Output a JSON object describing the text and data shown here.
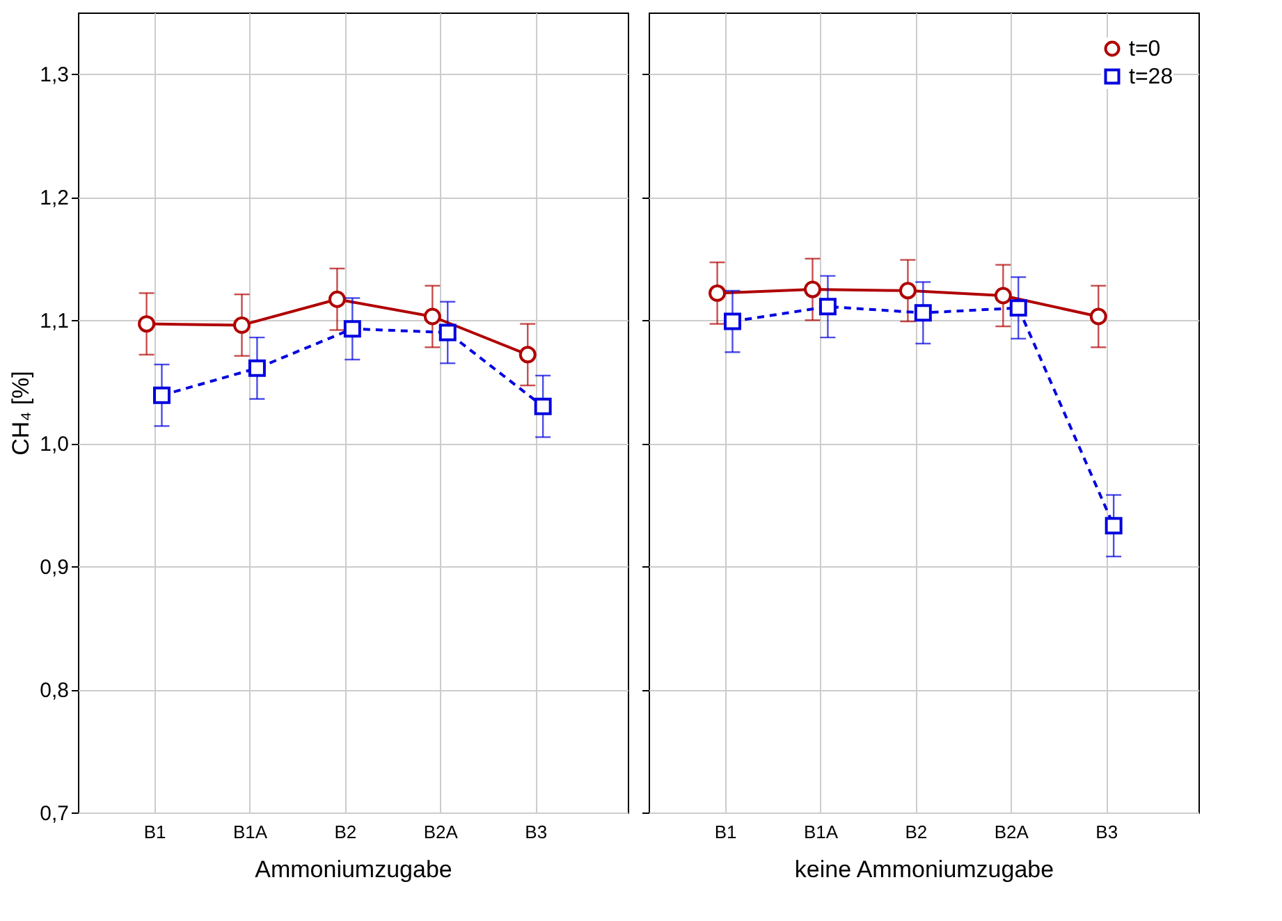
{
  "chart_data": [
    {
      "type": "line",
      "xlabel": "Ammoniumzugabe",
      "ylabel": "CH₄ [%]",
      "categories": [
        "B1",
        "B1A",
        "B2",
        "B2A",
        "B3"
      ],
      "ylim": [
        0.7,
        1.35
      ],
      "yticks": [
        {
          "value": 0.7,
          "label": "0,7"
        },
        {
          "value": 0.8,
          "label": "0,8"
        },
        {
          "value": 0.9,
          "label": "0,9"
        },
        {
          "value": 1.0,
          "label": "1,0"
        },
        {
          "value": 1.1,
          "label": "1,1"
        },
        {
          "value": 1.2,
          "label": "1,2"
        },
        {
          "value": 1.3,
          "label": "1,3"
        }
      ],
      "grid": true,
      "legend": false,
      "series": [
        {
          "color": "#b00000",
          "marker": "circle",
          "line_style": "solid",
          "values": [
            1.097,
            1.096,
            1.117,
            1.103,
            1.072
          ],
          "errors": [
            0.025,
            0.025,
            0.025,
            0.025,
            0.025
          ]
        },
        {
          "color": "#0000e0",
          "marker": "square",
          "line_style": "dashed",
          "values": [
            1.039,
            1.061,
            1.093,
            1.09,
            1.03
          ],
          "errors": [
            0.025,
            0.025,
            0.025,
            0.025,
            0.025
          ]
        }
      ]
    },
    {
      "type": "line",
      "xlabel": "keine Ammoniumzugabe",
      "categories": [
        "B1",
        "B1A",
        "B2",
        "B2A",
        "B3"
      ],
      "ylim": [
        0.7,
        1.35
      ],
      "yticks": [
        0.7,
        0.8,
        0.9,
        1.0,
        1.1,
        1.2,
        1.3
      ],
      "grid": true,
      "legend": "top right",
      "tick_labels": "x",
      "series": [
        {
          "name": "t=0",
          "color": "#b00000",
          "marker": "circle",
          "line_style": "solid",
          "values": [
            1.122,
            1.125,
            1.124,
            1.12,
            1.103
          ],
          "errors": [
            0.025,
            0.025,
            0.025,
            0.025,
            0.025
          ]
        },
        {
          "name": "t=28",
          "color": "#0000e0",
          "marker": "square",
          "line_style": "dashed",
          "values": [
            1.099,
            1.111,
            1.106,
            1.11,
            0.933
          ],
          "errors": [
            0.025,
            0.025,
            0.025,
            0.025,
            0.025
          ]
        }
      ]
    }
  ]
}
